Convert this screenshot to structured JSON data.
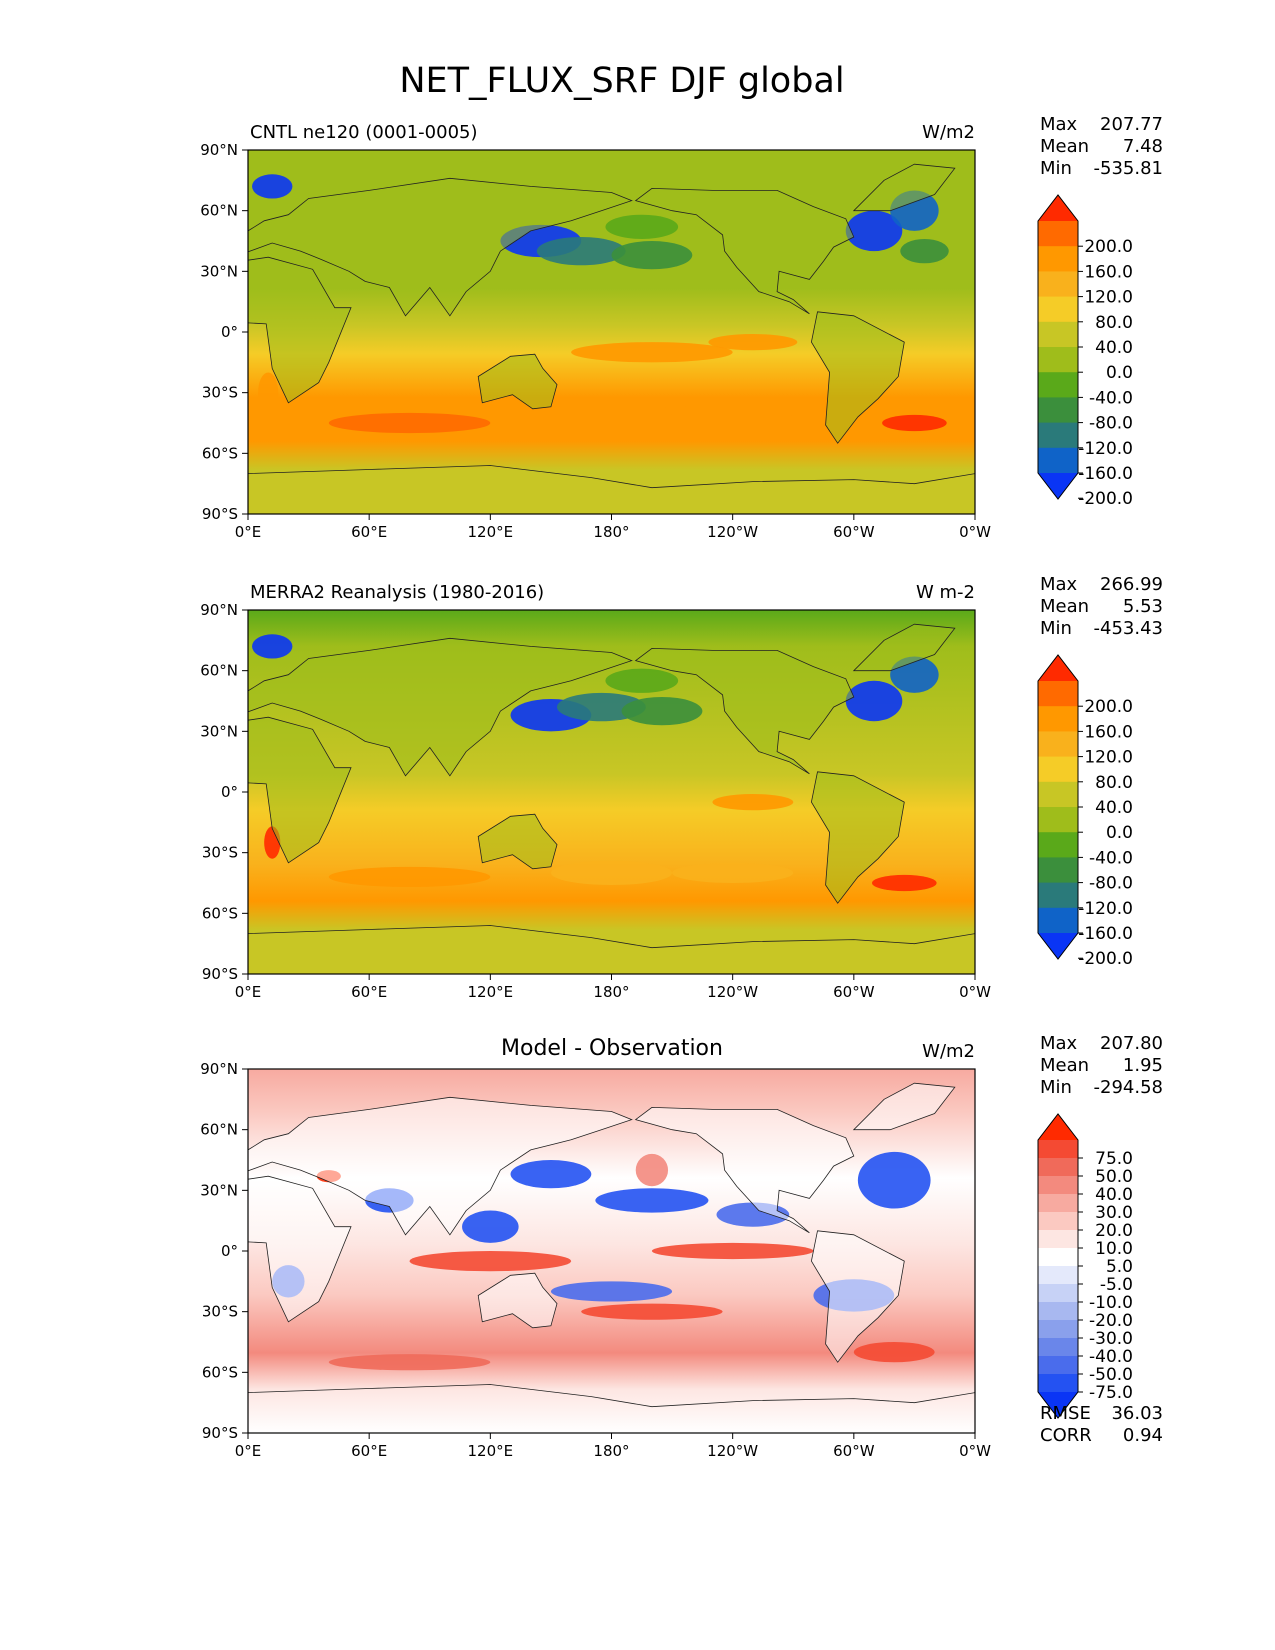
{
  "figure": {
    "title": "NET_FLUX_SRF DJF global"
  },
  "x_ticks": [
    "0°E",
    "60°E",
    "120°E",
    "180°",
    "120°W",
    "60°W",
    "0°W"
  ],
  "y_ticks": [
    "90°N",
    "60°N",
    "30°N",
    "0°",
    "30°S",
    "60°S",
    "90°S"
  ],
  "panels": [
    {
      "left_title": "CNTL ne120 (0001-0005)",
      "center_title": "",
      "units": "W/m2",
      "stats": [
        {
          "label": "Max",
          "value": "207.77"
        },
        {
          "label": "Mean",
          "value": "7.48"
        },
        {
          "label": "Min",
          "value": "-535.81"
        }
      ],
      "footer_stats": [],
      "colorbar_labels": [
        "200.0",
        "160.0",
        "120.0",
        "80.0",
        "40.0",
        "0.0",
        "-40.0",
        "-80.0",
        "-120.0",
        "-160.0",
        "-200.0"
      ],
      "colorbar_colors": [
        "#ff2a00",
        "#ff6a00",
        "#ff9800",
        "#f9b11c",
        "#f5cc27",
        "#c8c625",
        "#9fbd1b",
        "#5aa91a",
        "#3b8f3c",
        "#2a7a7a",
        "#0f63c8",
        "#0a35f5"
      ],
      "map_kind": "climo_model"
    },
    {
      "left_title": "MERRA2 Reanalysis (1980-2016)",
      "center_title": "",
      "units": "W m-2",
      "stats": [
        {
          "label": "Max",
          "value": "266.99"
        },
        {
          "label": "Mean",
          "value": "5.53"
        },
        {
          "label": "Min",
          "value": "-453.43"
        }
      ],
      "footer_stats": [],
      "colorbar_labels": [
        "200.0",
        "160.0",
        "120.0",
        "80.0",
        "40.0",
        "0.0",
        "-40.0",
        "-80.0",
        "-120.0",
        "-160.0",
        "-200.0"
      ],
      "colorbar_colors": [
        "#ff2a00",
        "#ff6a00",
        "#ff9800",
        "#f9b11c",
        "#f5cc27",
        "#c8c625",
        "#9fbd1b",
        "#5aa91a",
        "#3b8f3c",
        "#2a7a7a",
        "#0f63c8",
        "#0a35f5"
      ],
      "map_kind": "climo_obs"
    },
    {
      "left_title": "",
      "center_title": "Model - Observation",
      "units": "W/m2",
      "stats": [
        {
          "label": "Max",
          "value": "207.80"
        },
        {
          "label": "Mean",
          "value": "1.95"
        },
        {
          "label": "Min",
          "value": "-294.58"
        }
      ],
      "footer_stats": [
        {
          "label": "RMSE",
          "value": "36.03"
        },
        {
          "label": "CORR",
          "value": "0.94"
        }
      ],
      "colorbar_labels": [
        "75.0",
        "50.0",
        "40.0",
        "30.0",
        "20.0",
        "10.0",
        "5.0",
        "-5.0",
        "-10.0",
        "-20.0",
        "-30.0",
        "-40.0",
        "-50.0",
        "-75.0"
      ],
      "colorbar_colors": [
        "#ff2a00",
        "#f44a33",
        "#f06a5a",
        "#f38a7e",
        "#f7aaa0",
        "#fbc9c1",
        "#fde6e2",
        "#ffffff",
        "#e4e9fb",
        "#c7d2f6",
        "#a8b8f0",
        "#8aa0ec",
        "#6a86ea",
        "#4a6cec",
        "#2452f2",
        "#0a35f5"
      ],
      "map_kind": "diff"
    }
  ]
}
